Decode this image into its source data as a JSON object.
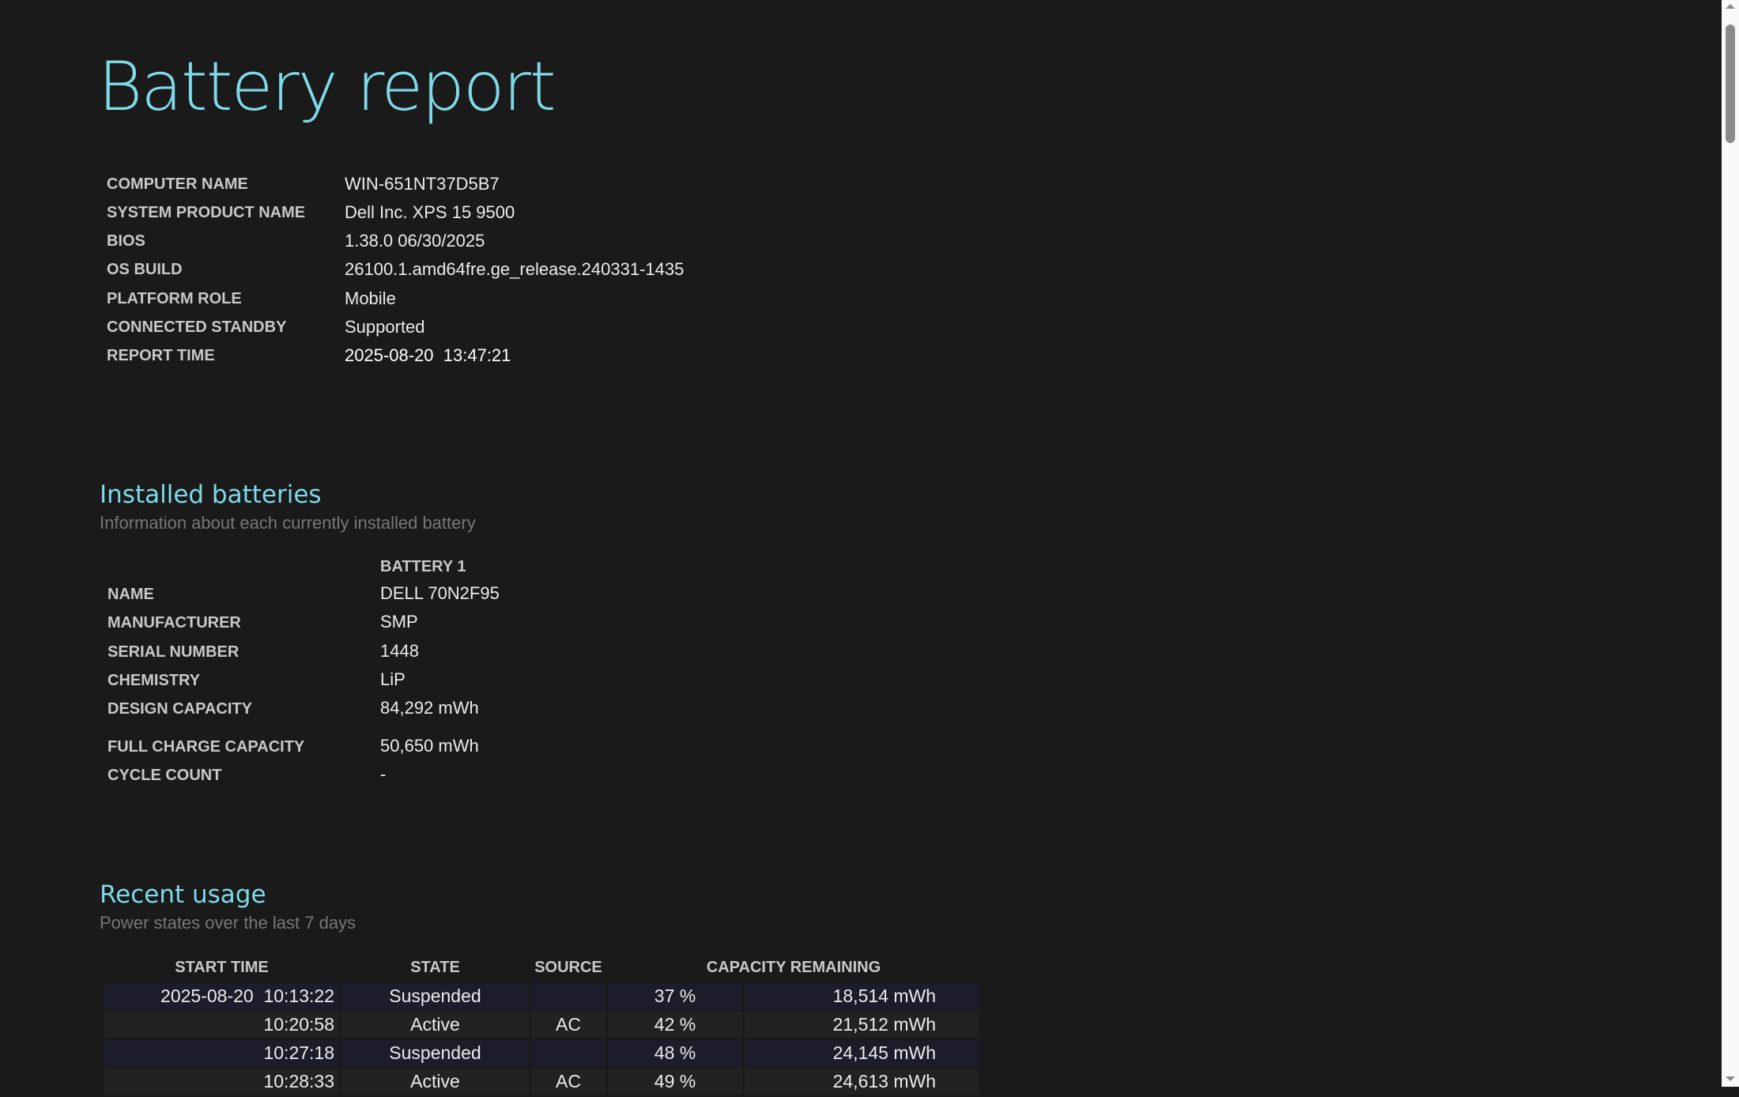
{
  "title": "Battery report",
  "system_info": [
    {
      "label": "COMPUTER NAME",
      "value": "WIN-651NT37D5B7"
    },
    {
      "label": "SYSTEM PRODUCT NAME",
      "value": "Dell Inc. XPS 15 9500"
    },
    {
      "label": "BIOS",
      "value": "1.38.0 06/30/2025"
    },
    {
      "label": "OS BUILD",
      "value": "26100.1.amd64fre.ge_release.240331-1435"
    },
    {
      "label": "PLATFORM ROLE",
      "value": "Mobile"
    },
    {
      "label": "CONNECTED STANDBY",
      "value": "Supported"
    },
    {
      "label": "REPORT TIME",
      "value": "2025-08-20  13:47:21"
    }
  ],
  "installed_batteries": {
    "heading": "Installed batteries",
    "subtitle": "Information about each currently installed battery",
    "column": "BATTERY 1",
    "rows": [
      {
        "label": "NAME",
        "value": "DELL 70N2F95"
      },
      {
        "label": "MANUFACTURER",
        "value": "SMP"
      },
      {
        "label": "SERIAL NUMBER",
        "value": "1448"
      },
      {
        "label": "CHEMISTRY",
        "value": "LiP"
      },
      {
        "label": "DESIGN CAPACITY",
        "value": "84,292 mWh"
      },
      {
        "label": "FULL CHARGE CAPACITY",
        "value": "50,650 mWh"
      },
      {
        "label": "CYCLE COUNT",
        "value": "-"
      }
    ]
  },
  "recent_usage": {
    "heading": "Recent usage",
    "subtitle": "Power states over the last 7 days",
    "columns": [
      "START TIME",
      "STATE",
      "SOURCE",
      "CAPACITY REMAINING"
    ],
    "rows": [
      {
        "start": "2025-08-20  10:13:22",
        "state": "Suspended",
        "source": "",
        "pct": "37 %",
        "mwh": "18,514 mWh"
      },
      {
        "start": "10:20:58",
        "state": "Active",
        "source": "AC",
        "pct": "42 %",
        "mwh": "21,512 mWh"
      },
      {
        "start": "10:27:18",
        "state": "Suspended",
        "source": "",
        "pct": "48 %",
        "mwh": "24,145 mWh"
      },
      {
        "start": "10:28:33",
        "state": "Active",
        "source": "AC",
        "pct": "49 %",
        "mwh": "24,613 mWh"
      }
    ]
  },
  "colors": {
    "background": "#1a1a1a",
    "accent": "#7fd9e9",
    "row_odd": "#1c1c2b",
    "row_even": "#222222"
  }
}
